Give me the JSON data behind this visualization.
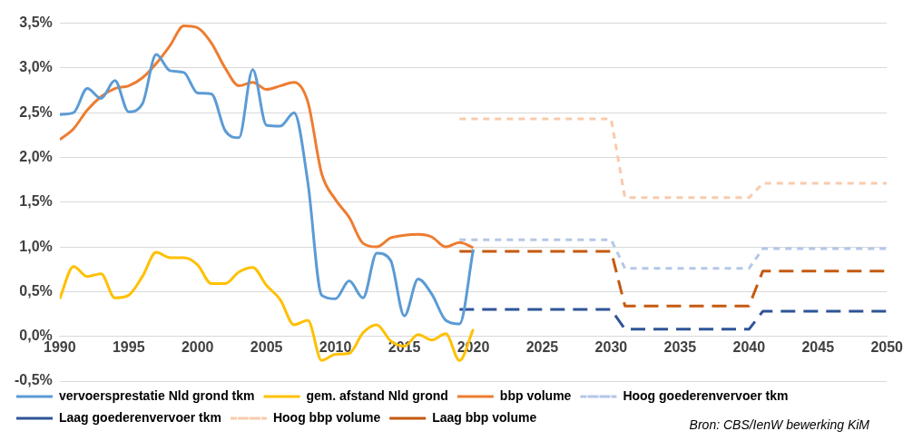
{
  "chart_data": {
    "type": "line",
    "x": [
      1990,
      1991,
      1992,
      1993,
      1994,
      1995,
      1996,
      1997,
      1998,
      1999,
      2000,
      2001,
      2002,
      2003,
      2004,
      2005,
      2006,
      2007,
      2008,
      2009,
      2010,
      2011,
      2012,
      2013,
      2014,
      2015,
      2016,
      2017,
      2018,
      2019,
      2020
    ],
    "series": [
      {
        "name": "vervoersprestatie Nld grond tkm",
        "color": "#5b9bd5",
        "line_style": "solid",
        "values": [
          2.48,
          2.5,
          2.77,
          2.66,
          2.86,
          2.51,
          2.6,
          3.15,
          2.97,
          2.95,
          2.72,
          2.71,
          2.3,
          2.22,
          2.98,
          2.36,
          2.35,
          2.5,
          1.72,
          0.46,
          0.42,
          0.62,
          0.43,
          0.93,
          0.85,
          0.23,
          0.64,
          0.47,
          0.18,
          0.14,
          0.97
        ]
      },
      {
        "name": "gem. afstand Nld grond",
        "color": "#ffc000",
        "line_style": "solid",
        "values": [
          0.42,
          0.78,
          0.67,
          0.7,
          0.43,
          0.46,
          0.67,
          0.94,
          0.88,
          0.88,
          0.8,
          0.59,
          0.59,
          0.72,
          0.77,
          0.57,
          0.41,
          0.13,
          0.18,
          -0.27,
          -0.2,
          -0.19,
          0.04,
          0.13,
          -0.05,
          -0.11,
          0.02,
          -0.04,
          0.03,
          -0.27,
          0.08
        ]
      },
      {
        "name": "bbp volume",
        "color": "#ed7d31",
        "line_style": "solid",
        "values": [
          2.2,
          2.32,
          2.53,
          2.68,
          2.77,
          2.8,
          2.89,
          3.05,
          3.25,
          3.47,
          3.45,
          3.28,
          3.0,
          2.8,
          2.84,
          2.76,
          2.8,
          2.84,
          2.62,
          1.82,
          1.53,
          1.33,
          1.04,
          1.0,
          1.1,
          1.13,
          1.14,
          1.11,
          1.0,
          1.05,
          0.99
        ]
      },
      {
        "name": "Hoog goederenvervoer tkm",
        "color": "#b4c7e7",
        "line_style": "dotted",
        "x": [
          2019,
          2030,
          2031,
          2040,
          2041,
          2050
        ],
        "values": [
          1.08,
          1.08,
          0.76,
          0.76,
          0.98,
          0.98
        ]
      },
      {
        "name": "Laag goederenvervoer tkm",
        "color": "#2f5597",
        "line_style": "dashed",
        "x": [
          2019,
          2030,
          2031,
          2040,
          2041,
          2050
        ],
        "values": [
          0.3,
          0.3,
          0.08,
          0.08,
          0.28,
          0.28
        ]
      },
      {
        "name": "Hoog bbp volume",
        "color": "#f8cbad",
        "line_style": "dotted",
        "x": [
          2019,
          2030,
          2031,
          2040,
          2041,
          2050
        ],
        "values": [
          2.43,
          2.43,
          1.55,
          1.55,
          1.71,
          1.71
        ]
      },
      {
        "name": "Laag bbp volume",
        "color": "#c55a11",
        "line_style": "dashed",
        "x": [
          2019,
          2030,
          2031,
          2040,
          2041,
          2050
        ],
        "values": [
          0.95,
          0.95,
          0.34,
          0.34,
          0.73,
          0.73
        ]
      }
    ],
    "xlim": [
      1990,
      2050
    ],
    "xticks": [
      1990,
      1995,
      2000,
      2005,
      2010,
      2015,
      2020,
      2025,
      2030,
      2035,
      2040,
      2045,
      2050
    ],
    "ylim": [
      -0.5,
      3.5
    ],
    "yticks": [
      {
        "value": -0.5,
        "label": "-0,5%"
      },
      {
        "value": 0,
        "label": "0,0%"
      },
      {
        "value": 0.5,
        "label": "0,5%"
      },
      {
        "value": 1,
        "label": "1,0%"
      },
      {
        "value": 1.5,
        "label": "1,5%"
      },
      {
        "value": 2,
        "label": "2,0%"
      },
      {
        "value": 2.5,
        "label": "2,5%"
      },
      {
        "value": 3,
        "label": "3,0%"
      },
      {
        "value": 3.5,
        "label": "3,5%"
      }
    ],
    "grid": "y",
    "legend": "bottom",
    "marker": "none",
    "annotations": [
      "Bron: CBS/IenW bewerking KiM"
    ]
  }
}
